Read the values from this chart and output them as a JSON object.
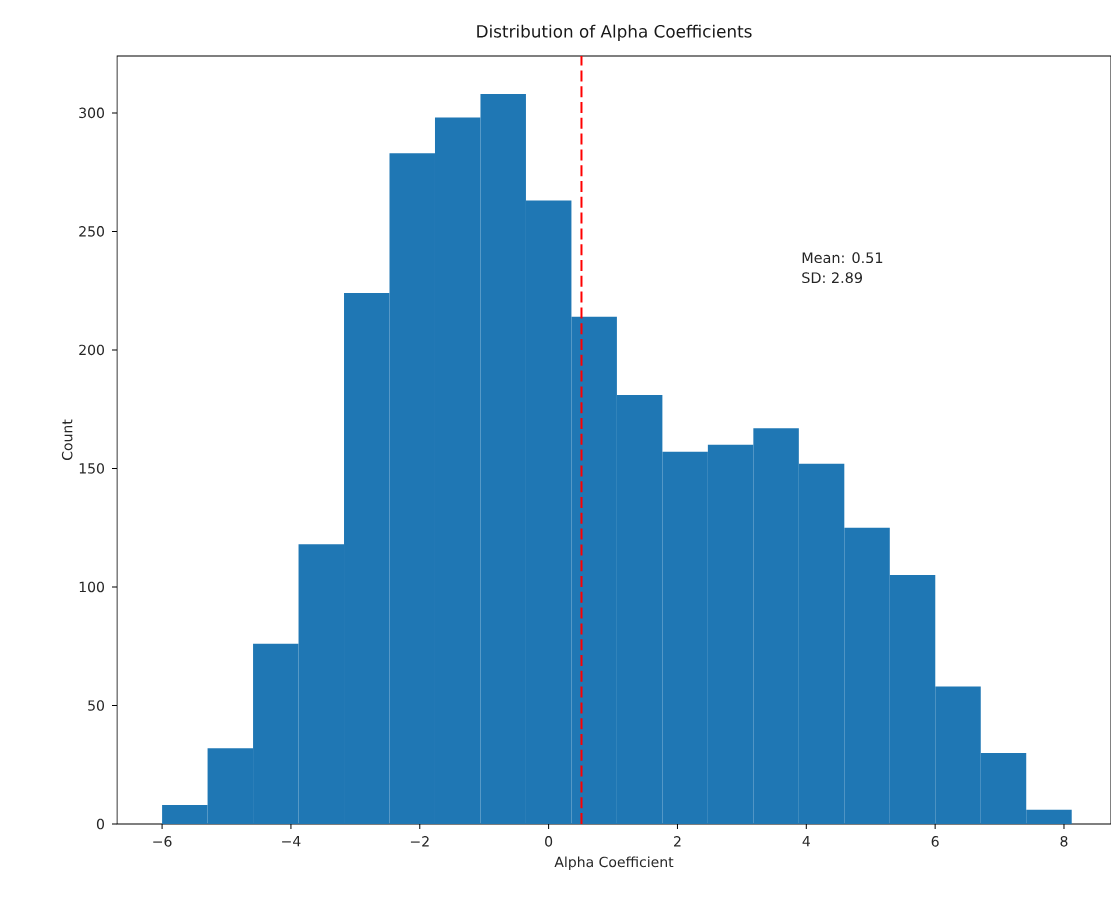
{
  "chart_data": {
    "type": "histogram",
    "title": "Distribution of Alpha Coefficients",
    "xlabel": "Alpha Coefficient",
    "ylabel": "Count",
    "bins": [
      -6.0,
      -5.294,
      -4.588,
      -3.882,
      -3.176,
      -2.47,
      -1.764,
      -1.058,
      -0.352,
      0.354,
      1.06,
      1.766,
      2.472,
      3.178,
      3.884,
      4.59,
      5.296,
      6.002,
      6.708,
      7.414,
      8.12
    ],
    "values": [
      8,
      32,
      76,
      118,
      224,
      283,
      298,
      308,
      263,
      214,
      181,
      157,
      160,
      167,
      152,
      125,
      105,
      58,
      30,
      6
    ],
    "color": "#1f77b4",
    "xlim": [
      -6.7,
      8.73
    ],
    "xticks": [
      {
        "value": -6,
        "label": "−6"
      },
      {
        "value": -4,
        "label": "−4"
      },
      {
        "value": -2,
        "label": "−2"
      },
      0,
      2,
      4,
      6,
      8
    ],
    "ylim": [
      0,
      324
    ],
    "yticks": [
      0,
      50,
      100,
      150,
      200,
      250,
      300
    ],
    "ref_lines": [
      {
        "axis": "x",
        "value": 0.51,
        "color": "#ff0000",
        "line_style": "dashed"
      }
    ],
    "annotations": [
      "Mean: 0.51",
      "SD: 2.89"
    ]
  }
}
